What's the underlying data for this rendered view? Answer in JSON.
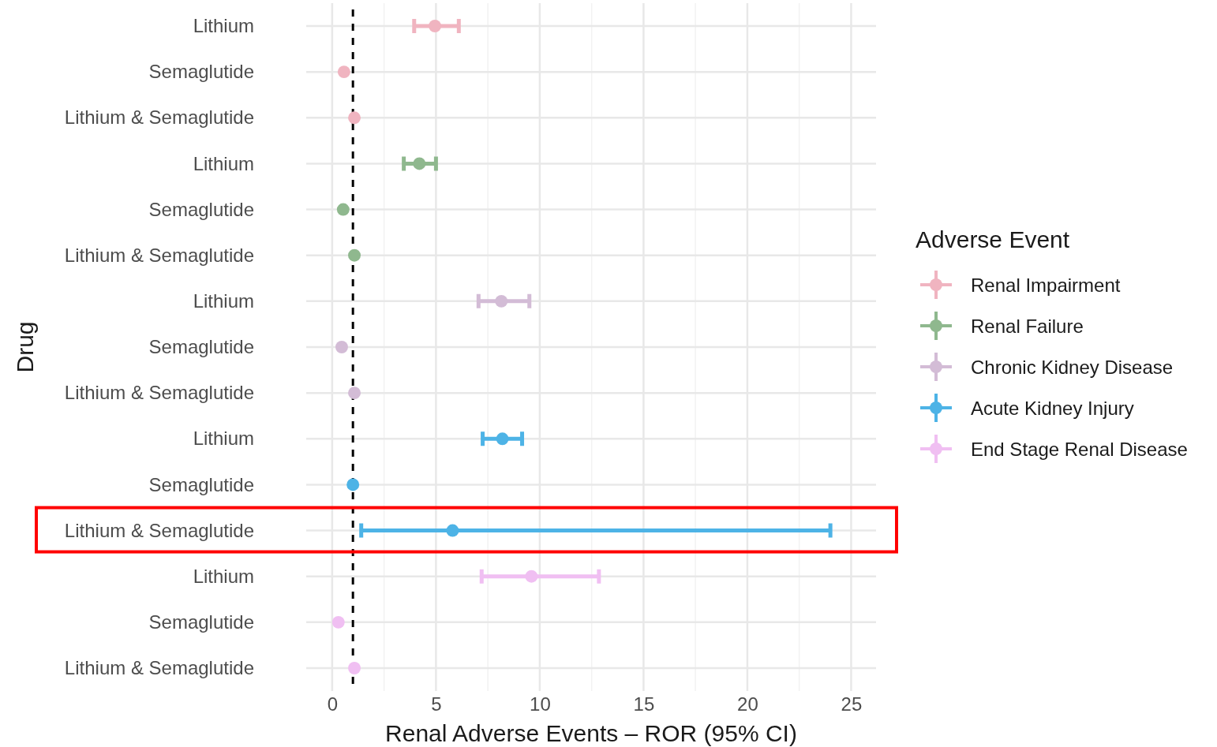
{
  "chart_data": {
    "type": "scatter",
    "orientation": "horizontal",
    "xlabel": "Renal Adverse Events – ROR (95% CI)",
    "ylabel": "Drug",
    "legend_title": "Adverse Event",
    "legend": "right",
    "grid": true,
    "marker": "circle",
    "categories": [
      "Lithium",
      "Semaglutide",
      "Lithium & Semaglutide",
      "Lithium",
      "Semaglutide",
      "Lithium & Semaglutide",
      "Lithium",
      "Semaglutide",
      "Lithium & Semaglutide",
      "Lithium",
      "Semaglutide",
      "Lithium & Semaglutide",
      "Lithium",
      "Semaglutide",
      "Lithium & Semaglutide"
    ],
    "xlim": [
      -1.25,
      26.2
    ],
    "xticks": [
      0,
      5,
      10,
      15,
      20,
      25
    ],
    "ref_lines": [
      {
        "axis": "x",
        "value": 1,
        "color": "#000000",
        "line_style": "dashed"
      }
    ],
    "series": [
      {
        "name": "Renal Impairment",
        "color": "#f0b4c0",
        "values": [
          4.95,
          0.57,
          1.07,
          null,
          null,
          null,
          null,
          null,
          null,
          null,
          null,
          null,
          null,
          null,
          null
        ],
        "errors": [
          [
            3.95,
            6.1
          ],
          null,
          null,
          null,
          null,
          null,
          null,
          null,
          null,
          null,
          null,
          null,
          null,
          null,
          null
        ]
      },
      {
        "name": "Renal Failure",
        "color": "#8fb88e",
        "values": [
          null,
          null,
          null,
          4.2,
          0.53,
          1.07,
          null,
          null,
          null,
          null,
          null,
          null,
          null,
          null,
          null
        ],
        "errors": [
          null,
          null,
          null,
          [
            3.45,
            5.0
          ],
          null,
          null,
          null,
          null,
          null,
          null,
          null,
          null,
          null,
          null,
          null
        ]
      },
      {
        "name": "Chronic Kidney Disease",
        "color": "#d3bcd6",
        "values": [
          null,
          null,
          null,
          null,
          null,
          null,
          8.15,
          0.46,
          1.07,
          null,
          null,
          null,
          null,
          null,
          null
        ],
        "errors": [
          null,
          null,
          null,
          null,
          null,
          null,
          [
            7.05,
            9.5
          ],
          null,
          null,
          null,
          null,
          null,
          null,
          null,
          null
        ]
      },
      {
        "name": "Acute Kidney Injury",
        "color": "#4db3e6",
        "values": [
          null,
          null,
          null,
          null,
          null,
          null,
          null,
          null,
          null,
          8.2,
          1.0,
          5.8,
          null,
          null,
          null
        ],
        "errors": [
          null,
          null,
          null,
          null,
          null,
          null,
          null,
          null,
          null,
          [
            7.25,
            9.15
          ],
          null,
          [
            1.4,
            24.0
          ],
          null,
          null,
          null
        ]
      },
      {
        "name": "End Stage Renal Disease",
        "color": "#f0bff2",
        "values": [
          null,
          null,
          null,
          null,
          null,
          null,
          null,
          null,
          null,
          null,
          null,
          null,
          9.6,
          0.3,
          1.07
        ],
        "errors": [
          null,
          null,
          null,
          null,
          null,
          null,
          null,
          null,
          null,
          null,
          null,
          null,
          [
            7.2,
            12.85
          ],
          null,
          null
        ]
      }
    ]
  }
}
